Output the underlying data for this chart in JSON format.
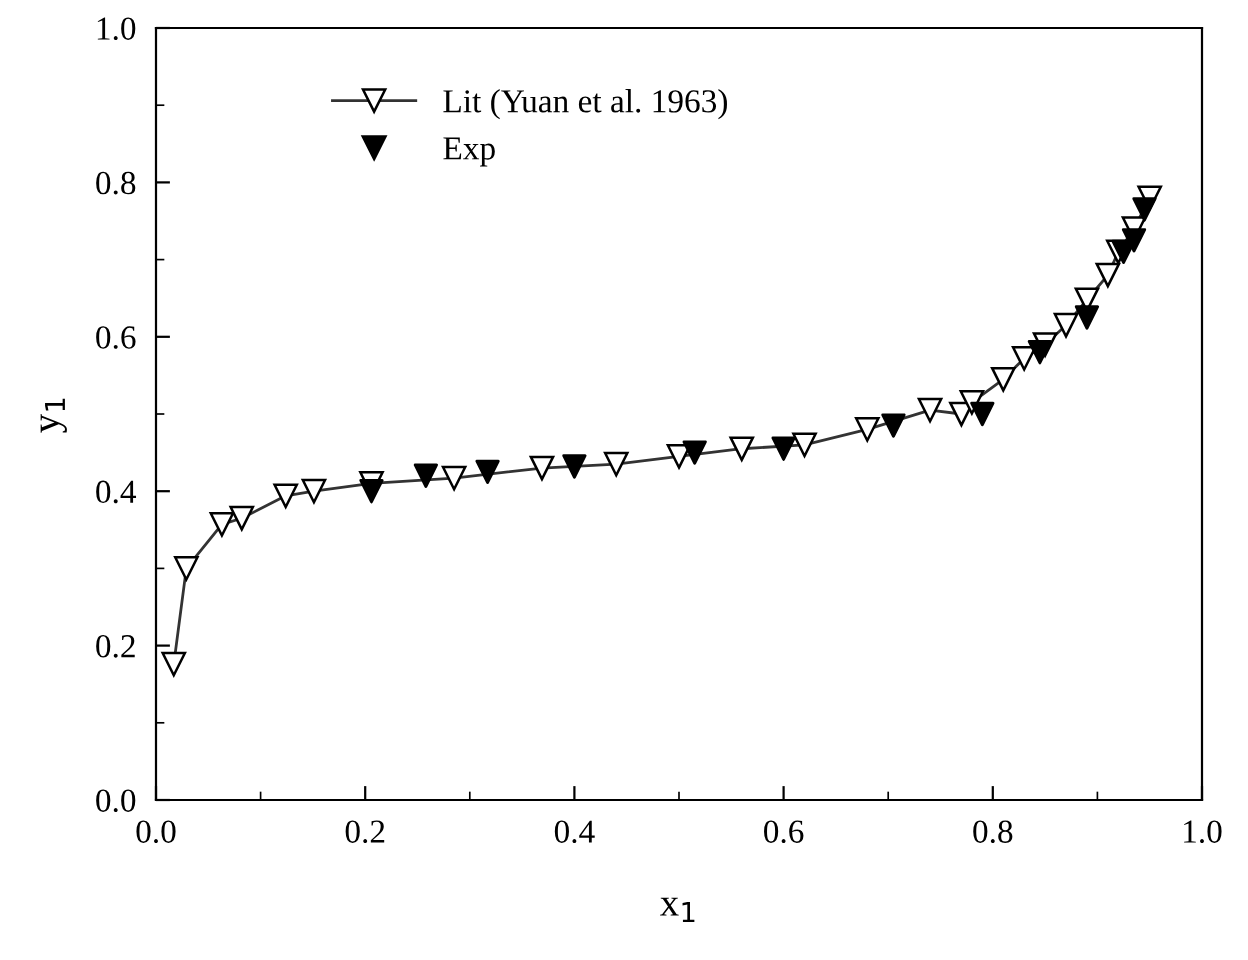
{
  "chart_data": {
    "type": "line",
    "xlabel": "x$_{1}$",
    "ylabel": "y$_{1}$",
    "xlim": [
      0.0,
      1.0
    ],
    "ylim": [
      0.0,
      1.0
    ],
    "xticks": [
      {
        "value": 0,
        "label": "0.0"
      },
      {
        "value": 0.2,
        "label": "0.2"
      },
      {
        "value": 0.4,
        "label": "0.4"
      },
      {
        "value": 0.6,
        "label": "0.6"
      },
      {
        "value": 0.8,
        "label": "0.8"
      },
      {
        "value": 1,
        "label": "1.0"
      }
    ],
    "yticks": [
      {
        "value": 0,
        "label": "0.0"
      },
      {
        "value": 0.2,
        "label": "0.2"
      },
      {
        "value": 0.4,
        "label": "0.4"
      },
      {
        "value": 0.6,
        "label": "0.6"
      },
      {
        "value": 0.8,
        "label": "0.8"
      },
      {
        "value": 1,
        "label": "1.0"
      }
    ],
    "grid": false,
    "legend": "top left",
    "series": [
      {
        "name": "Lit (Yuan et al. 1963)",
        "marker": "triangle",
        "line_style": "solid",
        "color": "#333333",
        "x": [
          0.017,
          0.029,
          0.063,
          0.082,
          0.124,
          0.151,
          0.206,
          0.285,
          0.369,
          0.44,
          0.5,
          0.56,
          0.62,
          0.68,
          0.74,
          0.77,
          0.78,
          0.81,
          0.83,
          0.85,
          0.87,
          0.89,
          0.91,
          0.92,
          0.935,
          0.95
        ],
        "values": [
          0.176,
          0.3,
          0.357,
          0.365,
          0.394,
          0.4,
          0.41,
          0.417,
          0.43,
          0.435,
          0.445,
          0.455,
          0.46,
          0.48,
          0.505,
          0.5,
          0.515,
          0.545,
          0.572,
          0.59,
          0.615,
          0.648,
          0.68,
          0.71,
          0.74,
          0.78
        ]
      },
      {
        "name": "Exp",
        "type": "scatter",
        "marker": "triangle",
        "color": "#000000",
        "x": [
          0.206,
          0.258,
          0.317,
          0.4,
          0.515,
          0.6,
          0.705,
          0.79,
          0.845,
          0.89,
          0.925,
          0.935,
          0.945
        ],
        "values": [
          0.4,
          0.42,
          0.425,
          0.432,
          0.45,
          0.455,
          0.485,
          0.5,
          0.58,
          0.625,
          0.71,
          0.725,
          0.765
        ]
      }
    ]
  }
}
